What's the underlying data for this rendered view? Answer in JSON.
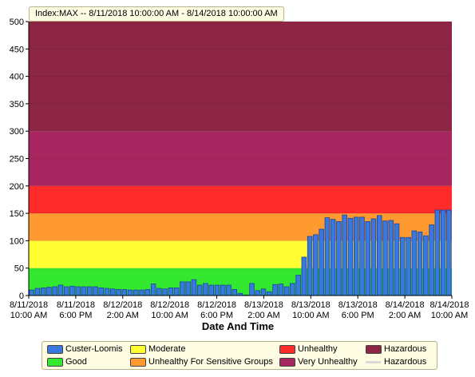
{
  "title": "Index:MAX -- 8/11/2018 10:00:00 AM  -  8/14/2018 10:00:00 AM",
  "chart_data": {
    "type": "bar",
    "xlabel": "Date And Time",
    "ylabel": "",
    "ylim": [
      0,
      500
    ],
    "yticks": [
      0,
      50,
      100,
      150,
      200,
      250,
      300,
      350,
      400,
      450,
      500
    ],
    "x_range": [
      "8/11/2018 10:00 AM",
      "8/14/2018 10:00 AM"
    ],
    "x_ticks": [
      {
        "l1": "8/11/2018",
        "l2": "10:00 AM"
      },
      {
        "l1": "8/11/2018",
        "l2": "6:00 PM"
      },
      {
        "l1": "8/12/2018",
        "l2": "2:00 AM"
      },
      {
        "l1": "8/12/2018",
        "l2": "10:00 AM"
      },
      {
        "l1": "8/12/2018",
        "l2": "6:00 PM"
      },
      {
        "l1": "8/13/2018",
        "l2": "2:00 AM"
      },
      {
        "l1": "8/13/2018",
        "l2": "10:00 AM"
      },
      {
        "l1": "8/13/2018",
        "l2": "6:00 PM"
      },
      {
        "l1": "8/14/2018",
        "l2": "2:00 AM"
      },
      {
        "l1": "8/14/2018",
        "l2": "10:00 AM"
      }
    ],
    "bands": [
      {
        "name": "Good",
        "from": 0,
        "to": 50,
        "color": "#33e82f"
      },
      {
        "name": "Moderate",
        "from": 50,
        "to": 100,
        "color": "#ffff33"
      },
      {
        "name": "Unhealthy For Sensitive Groups",
        "from": 100,
        "to": 150,
        "color": "#ff9a30"
      },
      {
        "name": "Unhealthy",
        "from": 150,
        "to": 200,
        "color": "#ff2a2a"
      },
      {
        "name": "Very Unhealthy",
        "from": 200,
        "to": 300,
        "color": "#a8265f"
      },
      {
        "name": "Hazardous",
        "from": 300,
        "to": 500,
        "color": "#8d2545"
      }
    ],
    "series": [
      {
        "name": "Custer-Loomis",
        "color": "#3a78e0",
        "values": [
          10,
          13,
          14,
          15,
          16,
          19,
          16,
          17,
          16,
          16,
          16,
          16,
          14,
          13,
          12,
          11,
          11,
          10,
          10,
          10,
          11,
          21,
          13,
          12,
          14,
          14,
          25,
          25,
          29,
          19,
          22,
          19,
          19,
          19,
          19,
          11,
          4,
          1,
          22,
          9,
          12,
          7,
          20,
          21,
          16,
          22,
          37,
          70,
          108,
          111,
          121,
          142,
          139,
          135,
          147,
          141,
          143,
          143,
          135,
          140,
          146,
          136,
          137,
          131,
          106,
          106,
          118,
          116,
          109,
          129,
          156,
          156,
          156
        ]
      }
    ],
    "legend": {
      "placement": "bottom",
      "items": [
        {
          "label": "Custer-Loomis",
          "color": "#3a78e0",
          "kind": "box"
        },
        {
          "label": "Moderate",
          "color": "#ffff33",
          "kind": "box"
        },
        {
          "label": "Unhealthy",
          "color": "#ff2a2a",
          "kind": "box"
        },
        {
          "label": "Hazardous",
          "color": "#8d2545",
          "kind": "box"
        },
        {
          "label": "Good",
          "color": "#33e82f",
          "kind": "box"
        },
        {
          "label": "Unhealthy For Sensitive Groups",
          "color": "#ff9a30",
          "kind": "box"
        },
        {
          "label": "Very Unhealthy",
          "color": "#a8265f",
          "kind": "box"
        },
        {
          "label": "Hazardous",
          "color": "#d9d9d9",
          "kind": "line"
        }
      ]
    }
  }
}
